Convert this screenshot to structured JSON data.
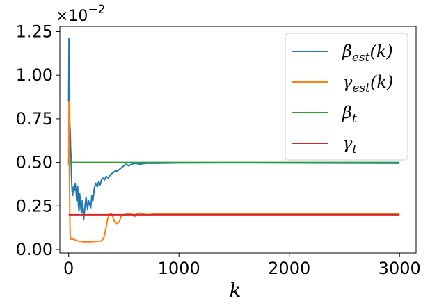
{
  "chart_data": {
    "type": "line",
    "xlabel": "k",
    "ylabel": "",
    "xlim": [
      -80,
      3150
    ],
    "ylim": [
      -0.0002,
      0.0128
    ],
    "x_ticks": [
      0,
      1000,
      2000,
      3000
    ],
    "x_tick_labels": [
      "0",
      "1000",
      "2000",
      "3000"
    ],
    "y_ticks": [
      0.0,
      0.0025,
      0.005,
      0.0075,
      0.01,
      0.0125
    ],
    "y_tick_labels": [
      "0.00",
      "0.25",
      "0.50",
      "0.75",
      "1.00",
      "1.25"
    ],
    "y_offset_text": "×10",
    "y_offset_exponent": "−2",
    "legend_position": "upper right",
    "grid": false,
    "series": [
      {
        "name": "β",
        "subscript": "est",
        "suffix": "(k)",
        "color": "#1f77b4",
        "points": [
          [
            0,
            0.0085
          ],
          [
            3,
            0.0121
          ],
          [
            6,
            0.0088
          ],
          [
            8,
            0.0098
          ],
          [
            10,
            0.0072
          ],
          [
            14,
            0.0068
          ],
          [
            18,
            0.0058
          ],
          [
            22,
            0.0052
          ],
          [
            26,
            0.0041
          ],
          [
            30,
            0.0035
          ],
          [
            36,
            0.0031
          ],
          [
            44,
            0.0036
          ],
          [
            52,
            0.0034
          ],
          [
            60,
            0.0038
          ],
          [
            66,
            0.0034
          ],
          [
            74,
            0.0028
          ],
          [
            82,
            0.0036
          ],
          [
            88,
            0.0026
          ],
          [
            94,
            0.0022
          ],
          [
            100,
            0.0032
          ],
          [
            106,
            0.0027
          ],
          [
            112,
            0.0023
          ],
          [
            118,
            0.0021
          ],
          [
            124,
            0.0028
          ],
          [
            130,
            0.0024
          ],
          [
            136,
            0.0017
          ],
          [
            142,
            0.0021
          ],
          [
            150,
            0.0026
          ],
          [
            158,
            0.003
          ],
          [
            166,
            0.0026
          ],
          [
            172,
            0.0023
          ],
          [
            180,
            0.0028
          ],
          [
            190,
            0.0026
          ],
          [
            200,
            0.0024
          ],
          [
            210,
            0.0031
          ],
          [
            220,
            0.0028
          ],
          [
            232,
            0.0035
          ],
          [
            246,
            0.0038
          ],
          [
            260,
            0.0036
          ],
          [
            272,
            0.0039
          ],
          [
            284,
            0.0037
          ],
          [
            298,
            0.004
          ],
          [
            312,
            0.0041
          ],
          [
            326,
            0.004
          ],
          [
            340,
            0.0042
          ],
          [
            360,
            0.0041
          ],
          [
            380,
            0.0043
          ],
          [
            400,
            0.0044
          ],
          [
            420,
            0.0045
          ],
          [
            440,
            0.0045
          ],
          [
            460,
            0.0046
          ],
          [
            480,
            0.0047
          ],
          [
            500,
            0.0048
          ],
          [
            520,
            0.0049
          ],
          [
            545,
            0.0048
          ],
          [
            570,
            0.0049
          ],
          [
            600,
            0.00495
          ],
          [
            650,
            0.0049
          ],
          [
            700,
            0.00495
          ],
          [
            800,
            0.00495
          ],
          [
            1000,
            0.00497
          ],
          [
            1500,
            0.00498
          ],
          [
            2000,
            0.00497
          ],
          [
            2500,
            0.00496
          ],
          [
            3000,
            0.00495
          ]
        ]
      },
      {
        "name": "γ",
        "subscript": "est",
        "suffix": "(k)",
        "color": "#ff7f0e",
        "points": [
          [
            0,
            0.0048
          ],
          [
            3,
            0.0085
          ],
          [
            5,
            0.006
          ],
          [
            8,
            0.0038
          ],
          [
            11,
            0.0016
          ],
          [
            14,
            0.0008
          ],
          [
            20,
            0.0006
          ],
          [
            40,
            0.0006
          ],
          [
            80,
            0.0005
          ],
          [
            140,
            0.00045
          ],
          [
            200,
            0.00045
          ],
          [
            260,
            0.00048
          ],
          [
            300,
            0.0005
          ],
          [
            320,
            0.0007
          ],
          [
            340,
            0.0013
          ],
          [
            355,
            0.0018
          ],
          [
            370,
            0.002
          ],
          [
            385,
            0.0021
          ],
          [
            400,
            0.0019
          ],
          [
            415,
            0.0016
          ],
          [
            430,
            0.0015
          ],
          [
            445,
            0.0015
          ],
          [
            460,
            0.0016
          ],
          [
            475,
            0.0019
          ],
          [
            490,
            0.002
          ],
          [
            510,
            0.002
          ],
          [
            530,
            0.00205
          ],
          [
            560,
            0.00205
          ],
          [
            600,
            0.0019
          ],
          [
            620,
            0.00205
          ],
          [
            650,
            0.0021
          ],
          [
            700,
            0.002
          ],
          [
            800,
            0.00205
          ],
          [
            1000,
            0.00205
          ],
          [
            1500,
            0.00205
          ],
          [
            2000,
            0.00205
          ],
          [
            2500,
            0.00205
          ],
          [
            3000,
            0.00205
          ]
        ]
      },
      {
        "name": "β",
        "subscript": "t",
        "suffix": "",
        "color": "#2ca02c",
        "points": [
          [
            0,
            0.005
          ],
          [
            3000,
            0.005
          ]
        ]
      },
      {
        "name": "γ",
        "subscript": "t",
        "suffix": "",
        "color": "#d62728",
        "points": [
          [
            0,
            0.002
          ],
          [
            3000,
            0.002
          ]
        ]
      }
    ]
  }
}
